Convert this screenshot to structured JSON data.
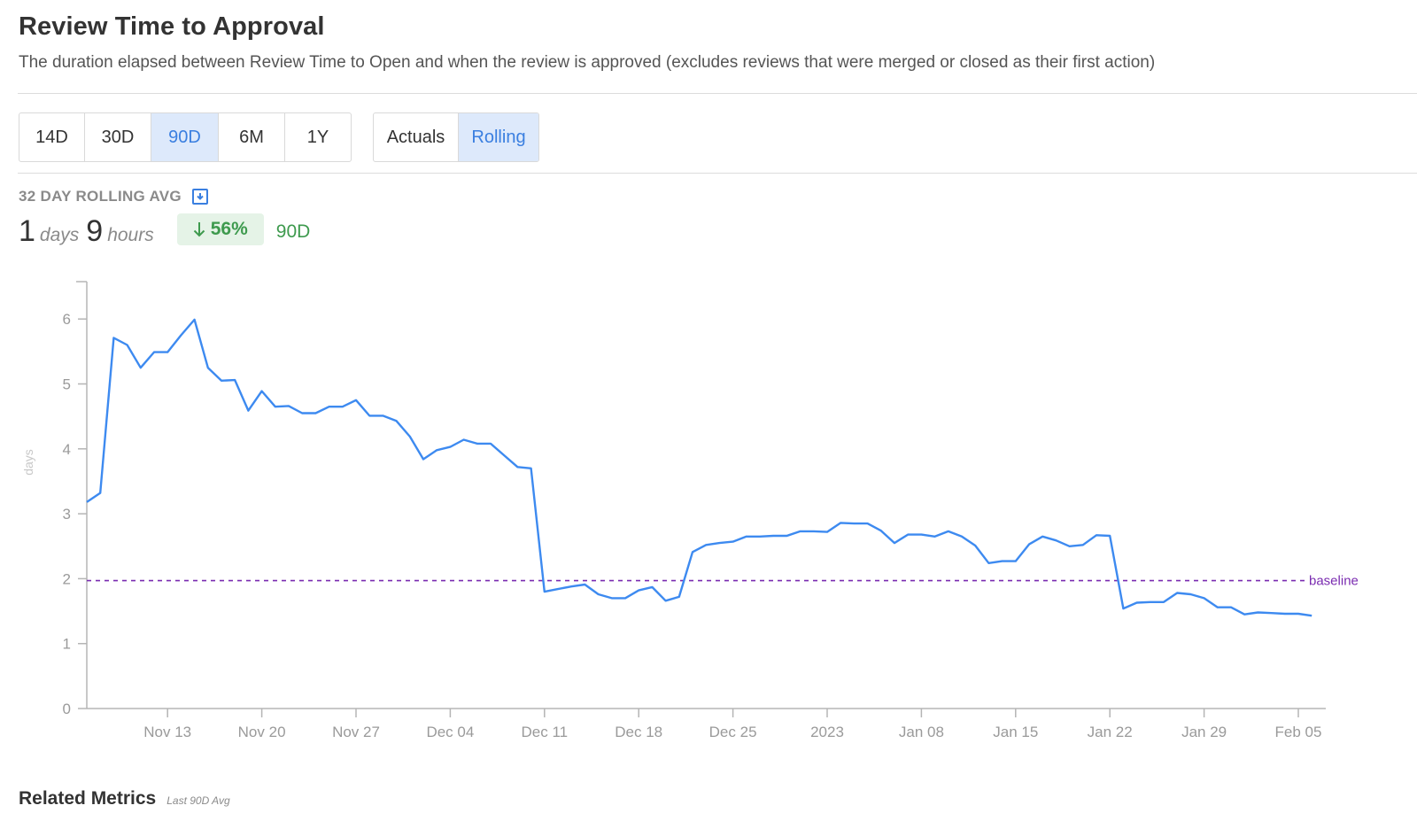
{
  "header": {
    "title": "Review Time to Approval",
    "subtitle": "The duration elapsed between Review Time to Open and when the review is approved (excludes reviews that were merged or closed as their first action)"
  },
  "range_tabs": [
    {
      "label": "14D",
      "active": false
    },
    {
      "label": "30D",
      "active": false
    },
    {
      "label": "90D",
      "active": true
    },
    {
      "label": "6M",
      "active": false
    },
    {
      "label": "1Y",
      "active": false
    }
  ],
  "mode_tabs": [
    {
      "label": "Actuals",
      "active": false
    },
    {
      "label": "Rolling",
      "active": true
    }
  ],
  "stat": {
    "label": "32 DAY ROLLING AVG",
    "days_value": "1",
    "days_unit": "days",
    "hours_value": "9",
    "hours_unit": "hours",
    "delta": "56%",
    "delta_direction": "down",
    "delta_period": "90D"
  },
  "colors": {
    "line": "#3d8af0",
    "baseline": "#7a2bb0",
    "accent": "#3a7fe0",
    "positive": "#3e9a4e"
  },
  "related": {
    "title": "Related Metrics",
    "subtitle": "Last 90D Avg"
  },
  "chart_data": {
    "type": "line",
    "title": "",
    "xlabel": "",
    "ylabel": "days",
    "ylim": [
      0,
      6.6
    ],
    "yticks": [
      0,
      1,
      2,
      3,
      4,
      5,
      6
    ],
    "xlim": [
      "2022-11-07",
      "2023-02-05"
    ],
    "xticks": [
      {
        "date": "2022-11-13",
        "label": "Nov 13"
      },
      {
        "date": "2022-11-20",
        "label": "Nov 20"
      },
      {
        "date": "2022-11-27",
        "label": "Nov 27"
      },
      {
        "date": "2022-12-04",
        "label": "Dec 04"
      },
      {
        "date": "2022-12-11",
        "label": "Dec 11"
      },
      {
        "date": "2022-12-18",
        "label": "Dec 18"
      },
      {
        "date": "2022-12-25",
        "label": "Dec 25"
      },
      {
        "date": "2023-01-01",
        "label": "2023"
      },
      {
        "date": "2023-01-08",
        "label": "Jan 08"
      },
      {
        "date": "2023-01-15",
        "label": "Jan 15"
      },
      {
        "date": "2023-01-22",
        "label": "Jan 22"
      },
      {
        "date": "2023-01-29",
        "label": "Jan 29"
      },
      {
        "date": "2023-02-05",
        "label": "Feb 05"
      }
    ],
    "baseline": {
      "value": 1.97,
      "label": "baseline"
    },
    "grid": false,
    "series": [
      {
        "name": "",
        "x": [
          "2022-11-07",
          "2022-11-08",
          "2022-11-09",
          "2022-11-10",
          "2022-11-11",
          "2022-11-12",
          "2022-11-13",
          "2022-11-14",
          "2022-11-15",
          "2022-11-16",
          "2022-11-17",
          "2022-11-18",
          "2022-11-19",
          "2022-11-20",
          "2022-11-21",
          "2022-11-22",
          "2022-11-23",
          "2022-11-24",
          "2022-11-25",
          "2022-11-26",
          "2022-11-27",
          "2022-11-28",
          "2022-11-29",
          "2022-11-30",
          "2022-12-01",
          "2022-12-02",
          "2022-12-03",
          "2022-12-04",
          "2022-12-05",
          "2022-12-06",
          "2022-12-07",
          "2022-12-08",
          "2022-12-09",
          "2022-12-10",
          "2022-12-11",
          "2022-12-12",
          "2022-12-13",
          "2022-12-14",
          "2022-12-15",
          "2022-12-16",
          "2022-12-17",
          "2022-12-18",
          "2022-12-19",
          "2022-12-20",
          "2022-12-21",
          "2022-12-22",
          "2022-12-23",
          "2022-12-24",
          "2022-12-25",
          "2022-12-26",
          "2022-12-27",
          "2022-12-28",
          "2022-12-29",
          "2022-12-30",
          "2022-12-31",
          "2023-01-01",
          "2023-01-02",
          "2023-01-03",
          "2023-01-04",
          "2023-01-05",
          "2023-01-06",
          "2023-01-07",
          "2023-01-08",
          "2023-01-09",
          "2023-01-10",
          "2023-01-11",
          "2023-01-12",
          "2023-01-13",
          "2023-01-14",
          "2023-01-15",
          "2023-01-16",
          "2023-01-17",
          "2023-01-18",
          "2023-01-19",
          "2023-01-20",
          "2023-01-21",
          "2023-01-22",
          "2023-01-23",
          "2023-01-24",
          "2023-01-25",
          "2023-01-26",
          "2023-01-27",
          "2023-01-28",
          "2023-01-29",
          "2023-01-30",
          "2023-01-31",
          "2023-02-01",
          "2023-02-02",
          "2023-02-03",
          "2023-02-04",
          "2023-02-05",
          "2023-02-06"
        ],
        "values": [
          3.18,
          3.32,
          5.71,
          5.6,
          5.25,
          5.49,
          5.49,
          5.75,
          5.99,
          5.25,
          5.05,
          5.06,
          4.59,
          4.89,
          4.65,
          4.66,
          4.55,
          4.55,
          4.65,
          4.65,
          4.75,
          4.51,
          4.51,
          4.43,
          4.19,
          3.84,
          3.98,
          4.03,
          4.14,
          4.08,
          4.08,
          3.9,
          3.72,
          3.7,
          1.8,
          1.84,
          1.88,
          1.91,
          1.76,
          1.7,
          1.7,
          1.82,
          1.87,
          1.66,
          1.72,
          2.41,
          2.52,
          2.55,
          2.57,
          2.65,
          2.65,
          2.66,
          2.66,
          2.73,
          2.73,
          2.72,
          2.86,
          2.85,
          2.85,
          2.74,
          2.55,
          2.68,
          2.68,
          2.65,
          2.73,
          2.65,
          2.51,
          2.24,
          2.27,
          2.27,
          2.53,
          2.65,
          2.59,
          2.5,
          2.52,
          2.67,
          2.66,
          1.54,
          1.63,
          1.64,
          1.64,
          1.78,
          1.76,
          1.7,
          1.56,
          1.56,
          1.45,
          1.48,
          1.47,
          1.46,
          1.46,
          1.43
        ]
      }
    ]
  }
}
